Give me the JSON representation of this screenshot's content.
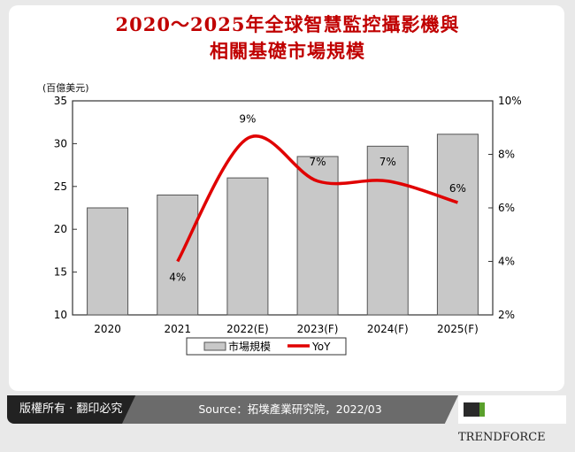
{
  "title_lines": [
    "2020～2025年全球智慧監控攝影機與",
    "相關基礎市場規模"
  ],
  "chart_data": {
    "type": "bar+line",
    "categories": [
      "2020",
      "2021",
      "2022(E)",
      "2023(F)",
      "2024(F)",
      "2025(F)"
    ],
    "ylabel": "(百億美元)",
    "ylim": [
      10,
      35
    ],
    "yticks": [
      "10",
      "15",
      "20",
      "25",
      "30",
      "35"
    ],
    "y2lim": [
      2,
      10
    ],
    "y2ticks": [
      "2%",
      "4%",
      "6%",
      "8%",
      "10%"
    ],
    "series": [
      {
        "name": "市場規模",
        "type": "bar",
        "color": "#c8c8c8",
        "values": [
          22.5,
          24.0,
          26.0,
          28.5,
          29.7,
          31.1
        ]
      },
      {
        "name": "YoY",
        "type": "line",
        "axis": "right",
        "color": "#e00000",
        "values": [
          null,
          4.0,
          8.6,
          7.0,
          7.0,
          6.2
        ],
        "labels": [
          "",
          "4%",
          "9%",
          "7%",
          "7%",
          "6%"
        ]
      }
    ],
    "legend": "bottom",
    "grid": false
  },
  "footer": {
    "copyright": "版權所有 · 翻印必究",
    "source": "Source：拓墣產業研究院，2022/03",
    "brand": "TRENDFORCE"
  }
}
